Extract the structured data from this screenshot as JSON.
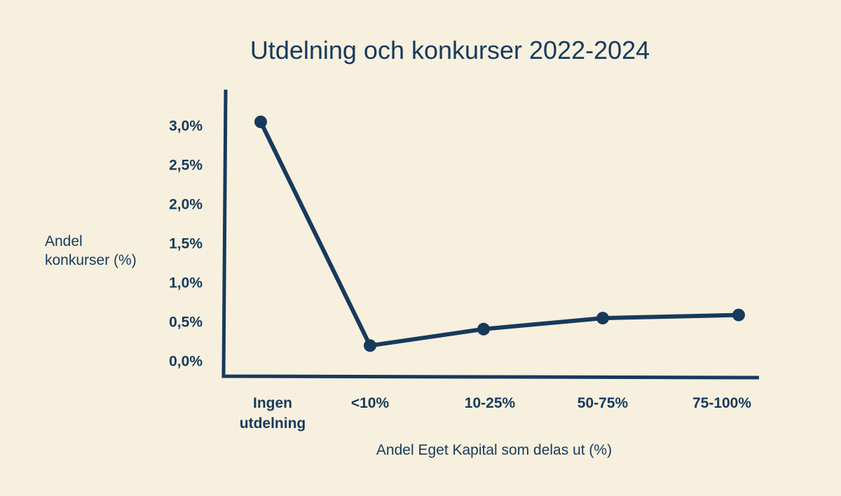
{
  "chart_data": {
    "type": "line",
    "title": "Utdelning och konkurser 2022-2024",
    "xlabel": "Andel Eget Kapital som delas ut (%)",
    "ylabel": [
      "Andel",
      "konkurser (%)"
    ],
    "categories": [
      [
        "Ingen",
        "utdelning"
      ],
      [
        "<10%"
      ],
      [
        "10-25%"
      ],
      [
        "50-75%"
      ],
      [
        "75-100%"
      ]
    ],
    "y_ticks": [
      "0,0%",
      "0,5%",
      "1,0%",
      "1,5%",
      "2,0%",
      "2,5%",
      "3,0%"
    ],
    "y_tick_values": [
      0,
      0.5,
      1.0,
      1.5,
      2.0,
      2.5,
      3.0
    ],
    "ylim": [
      -0.2,
      3.45
    ],
    "series": [
      {
        "values": [
          3.04,
          0.19,
          0.4,
          0.54,
          0.58
        ]
      }
    ],
    "grid": false,
    "legend": "none"
  },
  "colors": {
    "background": "#f7f0de",
    "ink": "#173a5c"
  }
}
